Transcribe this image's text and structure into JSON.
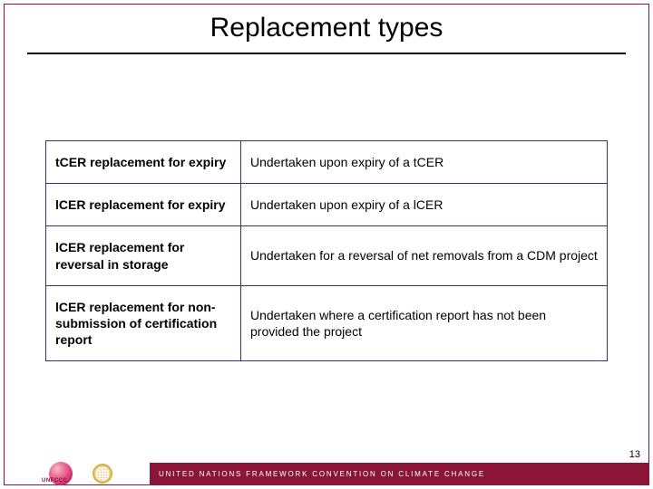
{
  "title": "Replacement types",
  "table": {
    "rows": [
      {
        "left": "tCER replacement for expiry",
        "right": "Undertaken upon expiry of a tCER"
      },
      {
        "left": "lCER replacement for expiry",
        "right": "Undertaken upon expiry of a lCER"
      },
      {
        "left": "lCER replacement for reversal in storage",
        "right": "Undertaken for a reversal of net removals from a CDM project"
      },
      {
        "left": "lCER replacement for non-submission of certification report",
        "right": "Undertaken where a certification report has not been provided the project"
      }
    ],
    "border_color": "#333366",
    "font_size": 14,
    "col_left_width": 215
  },
  "footer": {
    "band_color": "#8a1538",
    "text": "UNITED NATIONS FRAMEWORK CONVENTION ON CLIMATE CHANGE",
    "text_color": "#ffffff",
    "unfccc_label": "UNFCCC"
  },
  "page_number": "13",
  "colors": {
    "frame": "#8a1538",
    "title_underline": "#000000",
    "background": "#ffffff"
  }
}
